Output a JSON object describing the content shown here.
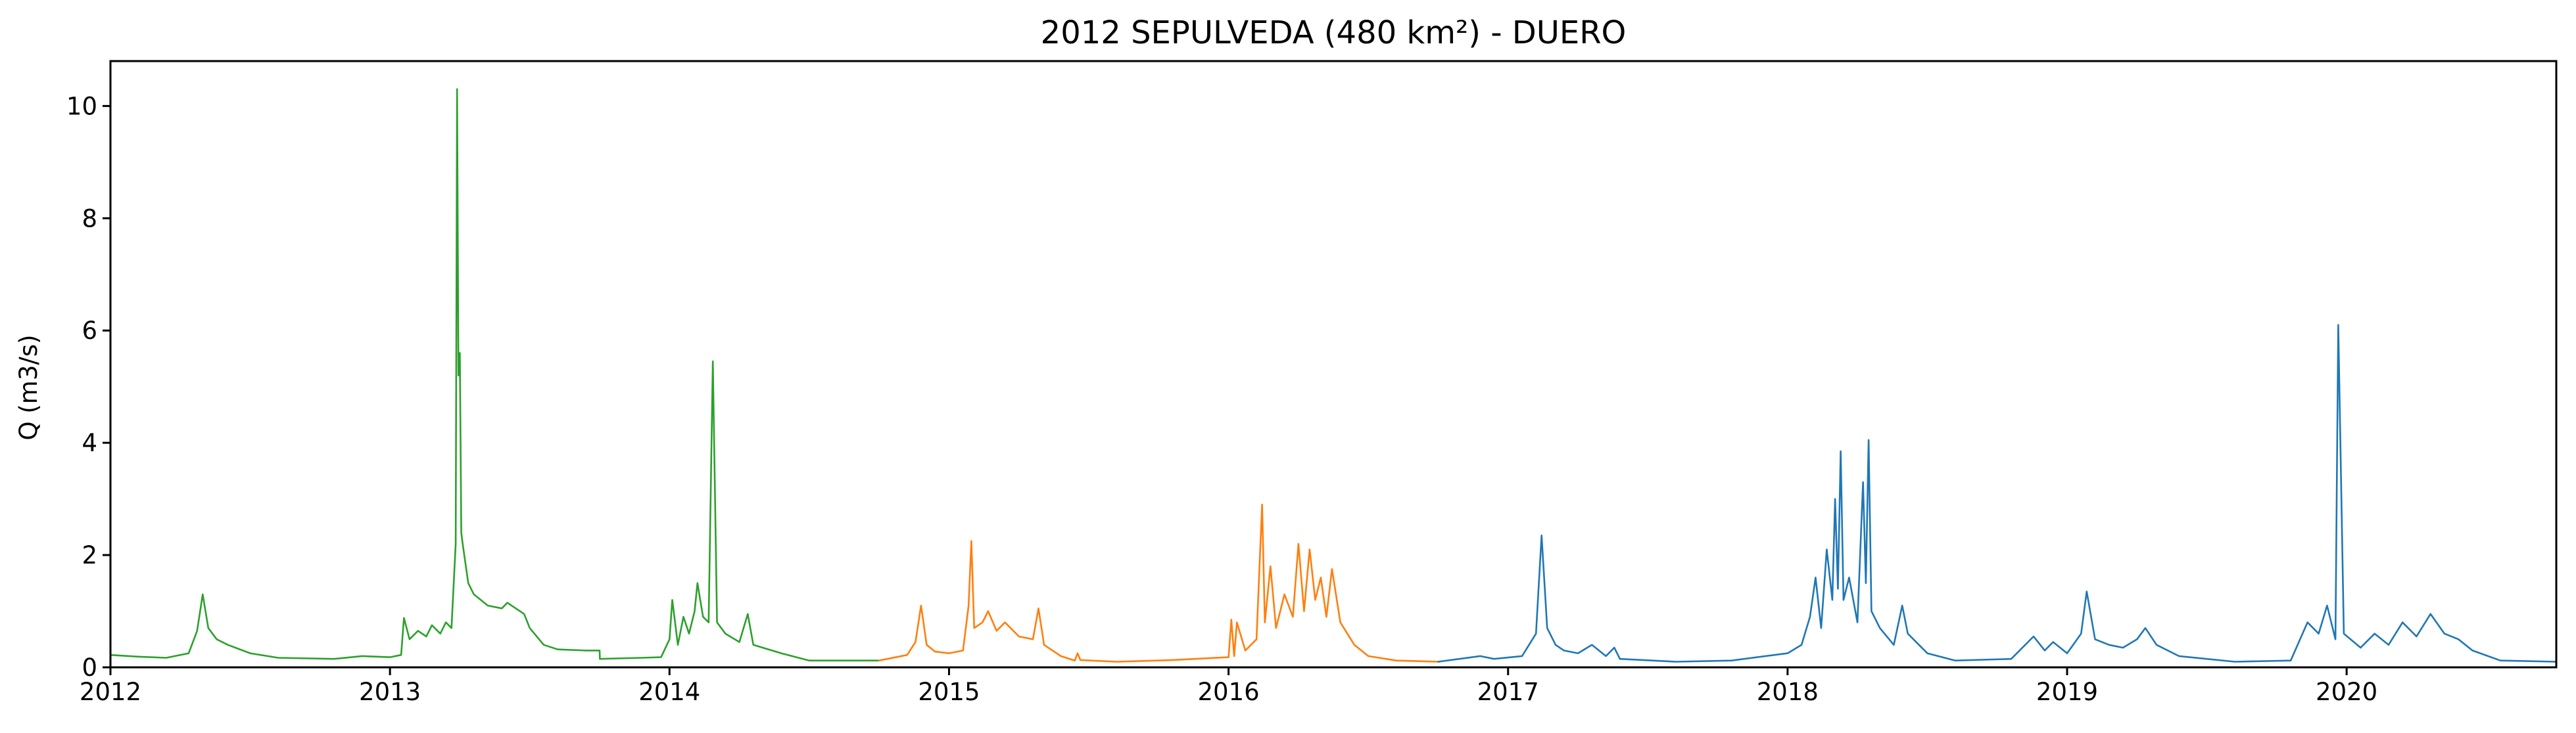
{
  "chart_data": {
    "type": "line",
    "title": "2012 SEPULVEDA (480 km²) - DUERO",
    "xlabel": "",
    "ylabel": "Q (m3/s)",
    "x_unit": "year",
    "xlim": [
      2012.0,
      2020.75
    ],
    "ylim": [
      0,
      10.8
    ],
    "xticks": [
      2012,
      2013,
      2014,
      2015,
      2016,
      2017,
      2018,
      2019,
      2020
    ],
    "xtick_labels": [
      "2012",
      "2013",
      "2014",
      "2015",
      "2016",
      "2017",
      "2018",
      "2019",
      "2020"
    ],
    "yticks": [
      0,
      2,
      4,
      6,
      8,
      10
    ],
    "ytick_labels": [
      "0",
      "2",
      "4",
      "6",
      "8",
      "10"
    ],
    "grid": false,
    "legend": "none",
    "series": [
      {
        "color": "#2ca02c",
        "points": [
          [
            2012.0,
            0.22
          ],
          [
            2012.1,
            0.19
          ],
          [
            2012.2,
            0.17
          ],
          [
            2012.28,
            0.25
          ],
          [
            2012.31,
            0.65
          ],
          [
            2012.33,
            1.3
          ],
          [
            2012.35,
            0.7
          ],
          [
            2012.38,
            0.5
          ],
          [
            2012.42,
            0.4
          ],
          [
            2012.5,
            0.25
          ],
          [
            2012.6,
            0.17
          ],
          [
            2012.8,
            0.15
          ],
          [
            2012.9,
            0.2
          ],
          [
            2013.0,
            0.18
          ],
          [
            2013.04,
            0.22
          ],
          [
            2013.05,
            0.88
          ],
          [
            2013.07,
            0.5
          ],
          [
            2013.1,
            0.65
          ],
          [
            2013.13,
            0.55
          ],
          [
            2013.15,
            0.75
          ],
          [
            2013.18,
            0.6
          ],
          [
            2013.2,
            0.8
          ],
          [
            2013.22,
            0.7
          ],
          [
            2013.235,
            2.2
          ],
          [
            2013.24,
            10.3
          ],
          [
            2013.245,
            5.2
          ],
          [
            2013.25,
            5.6
          ],
          [
            2013.255,
            2.4
          ],
          [
            2013.26,
            2.2
          ],
          [
            2013.28,
            1.5
          ],
          [
            2013.3,
            1.3
          ],
          [
            2013.35,
            1.1
          ],
          [
            2013.4,
            1.05
          ],
          [
            2013.42,
            1.15
          ],
          [
            2013.45,
            1.05
          ],
          [
            2013.48,
            0.95
          ],
          [
            2013.5,
            0.7
          ],
          [
            2013.55,
            0.4
          ],
          [
            2013.6,
            0.32
          ],
          [
            2013.7,
            0.3
          ],
          [
            2013.75,
            0.3
          ],
          [
            2013.751,
            0.15
          ],
          [
            2013.9,
            0.17
          ],
          [
            2013.97,
            0.18
          ],
          [
            2014.0,
            0.5
          ],
          [
            2014.01,
            1.2
          ],
          [
            2014.03,
            0.4
          ],
          [
            2014.05,
            0.9
          ],
          [
            2014.07,
            0.6
          ],
          [
            2014.09,
            1.0
          ],
          [
            2014.1,
            1.5
          ],
          [
            2014.12,
            0.9
          ],
          [
            2014.14,
            0.8
          ],
          [
            2014.155,
            5.45
          ],
          [
            2014.17,
            0.8
          ],
          [
            2014.2,
            0.6
          ],
          [
            2014.25,
            0.45
          ],
          [
            2014.28,
            0.95
          ],
          [
            2014.3,
            0.4
          ],
          [
            2014.4,
            0.25
          ],
          [
            2014.5,
            0.12
          ],
          [
            2014.75,
            0.12
          ]
        ]
      },
      {
        "color": "#ff7f0e",
        "points": [
          [
            2014.75,
            0.12
          ],
          [
            2014.85,
            0.22
          ],
          [
            2014.88,
            0.45
          ],
          [
            2014.9,
            1.1
          ],
          [
            2014.92,
            0.4
          ],
          [
            2014.95,
            0.28
          ],
          [
            2015.0,
            0.25
          ],
          [
            2015.05,
            0.3
          ],
          [
            2015.07,
            1.1
          ],
          [
            2015.08,
            2.25
          ],
          [
            2015.09,
            0.7
          ],
          [
            2015.12,
            0.8
          ],
          [
            2015.14,
            1.0
          ],
          [
            2015.17,
            0.65
          ],
          [
            2015.2,
            0.8
          ],
          [
            2015.25,
            0.55
          ],
          [
            2015.3,
            0.5
          ],
          [
            2015.32,
            1.05
          ],
          [
            2015.34,
            0.4
          ],
          [
            2015.4,
            0.2
          ],
          [
            2015.45,
            0.12
          ],
          [
            2015.46,
            0.25
          ],
          [
            2015.47,
            0.13
          ],
          [
            2015.6,
            0.1
          ],
          [
            2015.8,
            0.13
          ],
          [
            2016.0,
            0.18
          ],
          [
            2016.01,
            0.85
          ],
          [
            2016.02,
            0.2
          ],
          [
            2016.03,
            0.8
          ],
          [
            2016.06,
            0.3
          ],
          [
            2016.1,
            0.5
          ],
          [
            2016.12,
            2.9
          ],
          [
            2016.13,
            0.8
          ],
          [
            2016.15,
            1.8
          ],
          [
            2016.17,
            0.7
          ],
          [
            2016.2,
            1.3
          ],
          [
            2016.23,
            0.9
          ],
          [
            2016.25,
            2.2
          ],
          [
            2016.27,
            1.0
          ],
          [
            2016.29,
            2.1
          ],
          [
            2016.31,
            1.2
          ],
          [
            2016.33,
            1.6
          ],
          [
            2016.35,
            0.9
          ],
          [
            2016.37,
            1.75
          ],
          [
            2016.4,
            0.8
          ],
          [
            2016.45,
            0.4
          ],
          [
            2016.5,
            0.2
          ],
          [
            2016.6,
            0.12
          ],
          [
            2016.75,
            0.1
          ]
        ]
      },
      {
        "color": "#1f77b4",
        "points": [
          [
            2016.75,
            0.1
          ],
          [
            2016.9,
            0.2
          ],
          [
            2016.95,
            0.15
          ],
          [
            2017.05,
            0.2
          ],
          [
            2017.1,
            0.6
          ],
          [
            2017.12,
            2.35
          ],
          [
            2017.14,
            0.7
          ],
          [
            2017.17,
            0.4
          ],
          [
            2017.2,
            0.3
          ],
          [
            2017.25,
            0.25
          ],
          [
            2017.3,
            0.4
          ],
          [
            2017.35,
            0.2
          ],
          [
            2017.38,
            0.35
          ],
          [
            2017.4,
            0.15
          ],
          [
            2017.6,
            0.1
          ],
          [
            2017.8,
            0.12
          ],
          [
            2018.0,
            0.25
          ],
          [
            2018.05,
            0.4
          ],
          [
            2018.08,
            0.9
          ],
          [
            2018.1,
            1.6
          ],
          [
            2018.12,
            0.7
          ],
          [
            2018.14,
            2.1
          ],
          [
            2018.16,
            1.2
          ],
          [
            2018.17,
            3.0
          ],
          [
            2018.18,
            1.4
          ],
          [
            2018.19,
            3.85
          ],
          [
            2018.2,
            1.2
          ],
          [
            2018.22,
            1.6
          ],
          [
            2018.25,
            0.8
          ],
          [
            2018.27,
            3.3
          ],
          [
            2018.28,
            1.5
          ],
          [
            2018.29,
            4.05
          ],
          [
            2018.3,
            1.0
          ],
          [
            2018.33,
            0.7
          ],
          [
            2018.38,
            0.4
          ],
          [
            2018.41,
            1.1
          ],
          [
            2018.43,
            0.6
          ],
          [
            2018.5,
            0.25
          ],
          [
            2018.6,
            0.12
          ],
          [
            2018.8,
            0.15
          ],
          [
            2018.88,
            0.55
          ],
          [
            2018.92,
            0.3
          ],
          [
            2018.95,
            0.45
          ],
          [
            2019.0,
            0.25
          ],
          [
            2019.05,
            0.6
          ],
          [
            2019.07,
            1.35
          ],
          [
            2019.1,
            0.5
          ],
          [
            2019.15,
            0.4
          ],
          [
            2019.2,
            0.35
          ],
          [
            2019.25,
            0.5
          ],
          [
            2019.28,
            0.7
          ],
          [
            2019.32,
            0.4
          ],
          [
            2019.4,
            0.2
          ],
          [
            2019.6,
            0.1
          ],
          [
            2019.8,
            0.12
          ],
          [
            2019.86,
            0.8
          ],
          [
            2019.9,
            0.6
          ],
          [
            2019.93,
            1.1
          ],
          [
            2019.96,
            0.5
          ],
          [
            2019.97,
            6.1
          ],
          [
            2019.99,
            0.6
          ],
          [
            2020.05,
            0.35
          ],
          [
            2020.1,
            0.6
          ],
          [
            2020.15,
            0.4
          ],
          [
            2020.2,
            0.8
          ],
          [
            2020.25,
            0.55
          ],
          [
            2020.3,
            0.95
          ],
          [
            2020.35,
            0.6
          ],
          [
            2020.4,
            0.5
          ],
          [
            2020.45,
            0.3
          ],
          [
            2020.55,
            0.12
          ],
          [
            2020.75,
            0.1
          ]
        ]
      }
    ]
  }
}
